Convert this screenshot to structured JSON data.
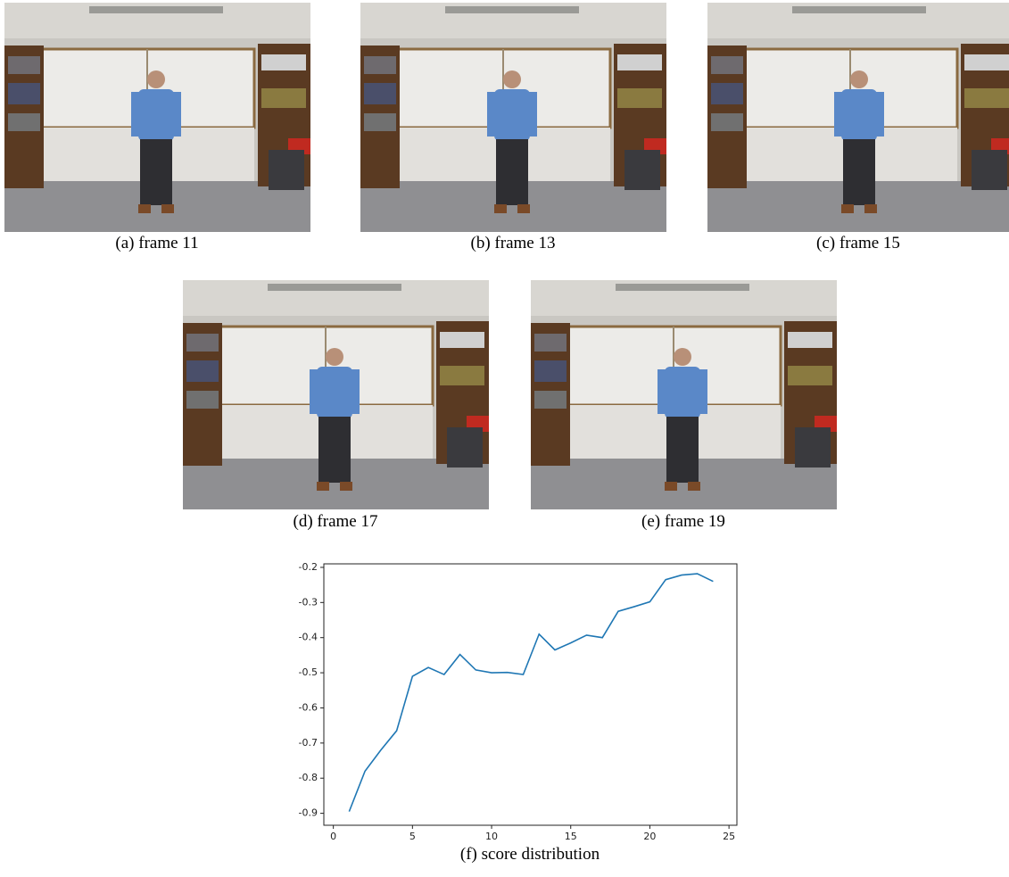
{
  "panels": [
    {
      "caption": "(a) frame 11"
    },
    {
      "caption": "(b) frame 13"
    },
    {
      "caption": "(c) frame 15"
    },
    {
      "caption": "(d) frame 17"
    },
    {
      "caption": "(e) frame 19"
    }
  ],
  "figure_caption": "(f) score distribution",
  "chart_data": {
    "type": "line",
    "x": [
      1,
      2,
      3,
      4,
      5,
      6,
      7,
      8,
      9,
      10,
      11,
      12,
      13,
      14,
      15,
      16,
      17,
      18,
      19,
      20,
      21,
      22,
      23,
      24
    ],
    "values": [
      -0.895,
      -0.78,
      -0.72,
      -0.665,
      -0.51,
      -0.485,
      -0.505,
      -0.448,
      -0.492,
      -0.5,
      -0.499,
      -0.505,
      -0.39,
      -0.435,
      -0.415,
      -0.393,
      -0.4,
      -0.325,
      -0.312,
      -0.298,
      -0.235,
      -0.222,
      -0.218,
      -0.24
    ],
    "color": "#1f77b4",
    "xlim": [
      -0.6,
      25.5
    ],
    "xticks": [
      0,
      5,
      10,
      15,
      20,
      25
    ],
    "ylim": [
      -0.934,
      -0.19
    ],
    "yticks": [
      -0.2,
      -0.3,
      -0.4,
      -0.5,
      -0.6,
      -0.7,
      -0.8,
      -0.9
    ],
    "grid": false
  }
}
